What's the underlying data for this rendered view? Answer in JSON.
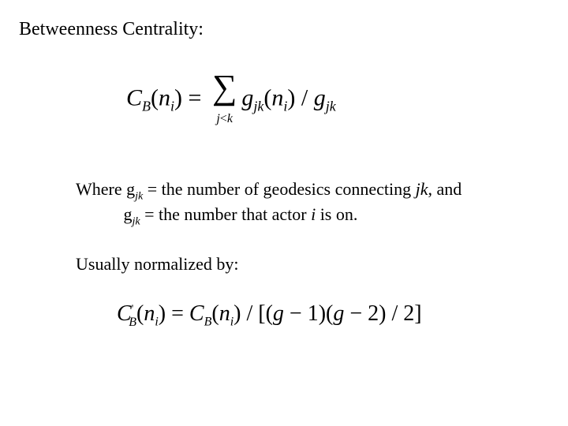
{
  "title": "Betweenness Centrality:",
  "formula1": {
    "C": "C",
    "B": "B",
    "lp1": "(",
    "n": "n",
    "i": "i",
    "rp1": ")",
    "eq": " = ",
    "sigma": "∑",
    "sigma_sub_j": "j",
    "sigma_sub_lt": "<",
    "sigma_sub_k": "k",
    "g1": "g",
    "jk1": "jk",
    "lp2": "(",
    "n2": "n",
    "i2": "i",
    "rp2": ")",
    "slash": " / ",
    "g2": "g",
    "jk2": "jk"
  },
  "where": {
    "line1_pre": "Where g",
    "line1_sub": "jk",
    "line1_mid": " = the number of geodesics connecting ",
    "line1_jk": "jk",
    "line1_post": ", and",
    "line2_indent": "           g",
    "line2_sub": "jk",
    "line2_mid": " = the number that actor ",
    "line2_i": "i",
    "line2_post": " is on."
  },
  "normalized": "Usually normalized by:",
  "formula2": {
    "C1": "C",
    "prime": "'",
    "B1": "B",
    "lp1": "(",
    "n1": "n",
    "i1": "i",
    "rp1": ")",
    "eq": " = ",
    "C2": "C",
    "B2": "B",
    "lp2": "(",
    "n2": "n",
    "i2": "i",
    "rp2": ")",
    "slash": " / ",
    "lb": "[(",
    "g1": "g",
    "minus1": " − ",
    "one": "1",
    "rp3": ")(",
    "g2": "g",
    "minus2": " − ",
    "two": "2",
    "rp4": ")",
    "slash2": " / ",
    "two2": "2",
    "rb": "]"
  }
}
